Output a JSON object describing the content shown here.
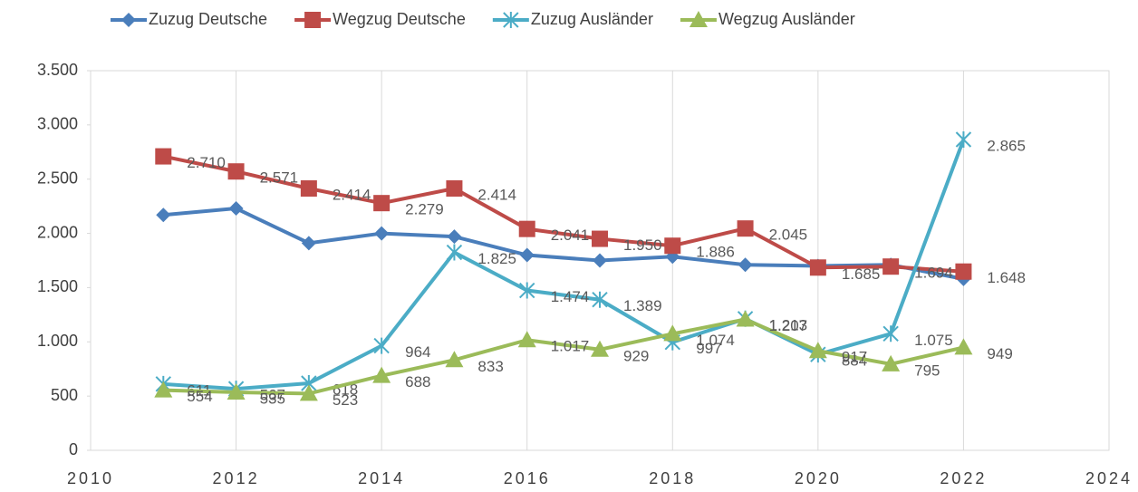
{
  "chart_data": {
    "type": "line",
    "x": [
      2011,
      2012,
      2013,
      2014,
      2015,
      2016,
      2017,
      2018,
      2019,
      2020,
      2021,
      2022
    ],
    "series": [
      {
        "name": "Zuzug Deutsche",
        "color": "#4a7ebb",
        "marker": "diamond",
        "values": [
          2170,
          2230,
          1910,
          2000,
          1970,
          1800,
          1750,
          1785,
          1710,
          1700,
          1710,
          1580
        ]
      },
      {
        "name": "Wegzug Deutsche",
        "color": "#be4b48",
        "marker": "square",
        "values": [
          2710,
          2571,
          2414,
          2279,
          2414,
          2041,
          1950,
          1886,
          2045,
          1685,
          1694,
          1648
        ],
        "value_labels": [
          "2.710",
          "2.571",
          "2.414",
          "2.279",
          "2.414",
          "2.041",
          "1.950",
          "1.886",
          "2.045",
          "1.685",
          "1.694",
          "1.648"
        ]
      },
      {
        "name": "Zuzug Ausländer",
        "color": "#4bacc6",
        "marker": "asterisk",
        "values": [
          611,
          567,
          618,
          964,
          1825,
          1474,
          1389,
          997,
          1213,
          884,
          1075,
          2865
        ],
        "value_labels": [
          "611",
          "567",
          "618",
          "964",
          "1.825",
          "1.474",
          "1.389",
          "997",
          "1.213",
          "884",
          "1.075",
          "2.865"
        ]
      },
      {
        "name": "Wegzug Ausländer",
        "color": "#9bbb59",
        "marker": "triangle",
        "values": [
          554,
          535,
          523,
          688,
          833,
          1017,
          929,
          1074,
          1207,
          917,
          795,
          949
        ],
        "value_labels": [
          "554",
          "535",
          "523",
          "688",
          "833",
          "1.017",
          "929",
          "1.074",
          "1.207",
          "917",
          "795",
          "949"
        ]
      }
    ],
    "xlim": [
      2010,
      2024
    ],
    "xticks": [
      2010,
      2012,
      2014,
      2016,
      2018,
      2020,
      2022,
      2024
    ],
    "ylim": [
      0,
      3500
    ],
    "yticks": [
      0,
      500,
      {
        "value": 1000,
        "label": "1.000"
      },
      {
        "value": 1500,
        "label": "1.500"
      },
      {
        "value": 2000,
        "label": "2.000"
      },
      {
        "value": 2500,
        "label": "2.500"
      },
      {
        "value": 3000,
        "label": "3.000"
      },
      {
        "value": 3500,
        "label": "3.500"
      }
    ],
    "grid": "x",
    "legend": "top"
  }
}
